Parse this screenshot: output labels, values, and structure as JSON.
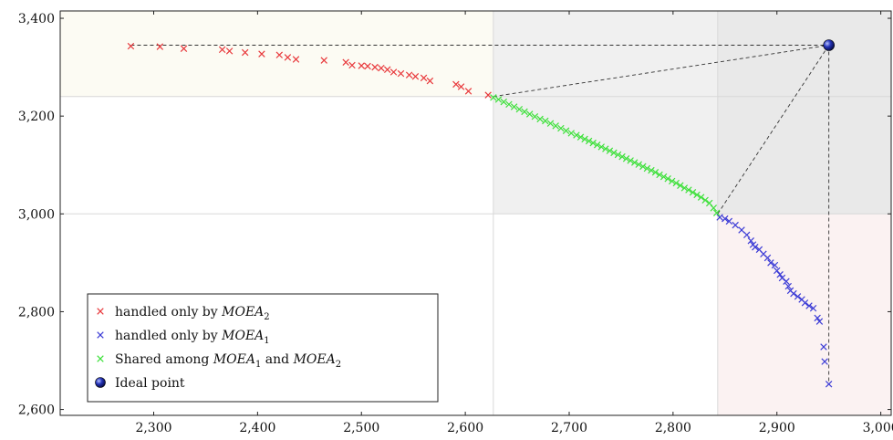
{
  "chart_data": {
    "type": "scatter",
    "xlim": [
      2210,
      3010
    ],
    "ylim": [
      2588,
      3415
    ],
    "x_ticks": [
      {
        "value": 2300,
        "label": "2,300"
      },
      {
        "value": 2400,
        "label": "2,400"
      },
      {
        "value": 2500,
        "label": "2,500"
      },
      {
        "value": 2600,
        "label": "2,600"
      },
      {
        "value": 2700,
        "label": "2,700"
      },
      {
        "value": 2800,
        "label": "2,800"
      },
      {
        "value": 2900,
        "label": "2,900"
      },
      {
        "value": 3000,
        "label": "3,000"
      }
    ],
    "y_ticks": [
      {
        "value": 2600,
        "label": "2,600"
      },
      {
        "value": 2800,
        "label": "2,800"
      },
      {
        "value": 3000,
        "label": "3,000"
      },
      {
        "value": 3200,
        "label": "3,200"
      },
      {
        "value": 3400,
        "label": "3,400"
      }
    ],
    "grid": false,
    "legend_placement": "bottom-left",
    "regions": [
      {
        "x": [
          2210,
          2627
        ],
        "y": [
          3240,
          3415
        ],
        "color": "#fcfbf3"
      },
      {
        "x": [
          2627,
          2843
        ],
        "y": [
          3000,
          3415
        ],
        "color": "#f0f0f0"
      },
      {
        "x": [
          2843,
          3010
        ],
        "y": [
          3000,
          3415
        ],
        "color": "#e9e9e9"
      },
      {
        "x": [
          2843,
          3010
        ],
        "y": [
          2588,
          3000
        ],
        "color": "#fbf2f2"
      }
    ],
    "boundary_lines": {
      "x": [
        2627,
        2843
      ],
      "y": [
        3000,
        3240
      ],
      "color": "#d8d8d8"
    },
    "ideal_point": {
      "x": 2950,
      "y": 3345
    },
    "reference_lines": [
      {
        "from": [
          2278,
          3345
        ],
        "to": [
          2950,
          3345
        ]
      },
      {
        "from": [
          2627,
          3240
        ],
        "to": [
          2950,
          3345
        ]
      },
      {
        "from": [
          2843,
          3000
        ],
        "to": [
          2950,
          3345
        ]
      },
      {
        "from": [
          2950,
          3345
        ],
        "to": [
          2950,
          2652
        ]
      }
    ],
    "series": [
      {
        "name": "handled only by MOEA2",
        "marker": "x",
        "color": "#e8383b",
        "points": [
          [
            2278,
            3343
          ],
          [
            2306,
            3342
          ],
          [
            2329,
            3338
          ],
          [
            2366,
            3336
          ],
          [
            2373,
            3333
          ],
          [
            2388,
            3330
          ],
          [
            2404,
            3327
          ],
          [
            2421,
            3325
          ],
          [
            2429,
            3320
          ],
          [
            2437,
            3316
          ],
          [
            2464,
            3314
          ],
          [
            2485,
            3310
          ],
          [
            2491,
            3304
          ],
          [
            2500,
            3303
          ],
          [
            2506,
            3302
          ],
          [
            2513,
            3300
          ],
          [
            2519,
            3298
          ],
          [
            2525,
            3295
          ],
          [
            2531,
            3290
          ],
          [
            2538,
            3287
          ],
          [
            2546,
            3284
          ],
          [
            2552,
            3281
          ],
          [
            2560,
            3278
          ],
          [
            2566,
            3272
          ],
          [
            2591,
            3265
          ],
          [
            2596,
            3260
          ],
          [
            2603,
            3251
          ],
          [
            2622,
            3243
          ]
        ]
      },
      {
        "name": "handled only by MOEA1",
        "marker": "x",
        "color": "#3c3cd6",
        "points": [
          [
            2845,
            2993
          ],
          [
            2850,
            2990
          ],
          [
            2854,
            2985
          ],
          [
            2860,
            2977
          ],
          [
            2866,
            2967
          ],
          [
            2871,
            2957
          ],
          [
            2875,
            2945
          ],
          [
            2877,
            2937
          ],
          [
            2879,
            2932
          ],
          [
            2883,
            2927
          ],
          [
            2887,
            2918
          ],
          [
            2891,
            2910
          ],
          [
            2894,
            2900
          ],
          [
            2898,
            2895
          ],
          [
            2900,
            2884
          ],
          [
            2903,
            2876
          ],
          [
            2905,
            2869
          ],
          [
            2909,
            2862
          ],
          [
            2911,
            2852
          ],
          [
            2913,
            2843
          ],
          [
            2916,
            2837
          ],
          [
            2920,
            2831
          ],
          [
            2924,
            2825
          ],
          [
            2927,
            2818
          ],
          [
            2931,
            2812
          ],
          [
            2935,
            2807
          ],
          [
            2939,
            2787
          ],
          [
            2941,
            2780
          ],
          [
            2945,
            2728
          ],
          [
            2946,
            2698
          ],
          [
            2950,
            2652
          ]
        ]
      },
      {
        "name": "Shared among MOEA1 and MOEA2",
        "marker": "x",
        "color": "#3de03a",
        "points": [
          [
            2627,
            3238
          ],
          [
            2632,
            3234
          ],
          [
            2637,
            3229
          ],
          [
            2642,
            3224
          ],
          [
            2647,
            3219
          ],
          [
            2652,
            3214
          ],
          [
            2657,
            3209
          ],
          [
            2662,
            3204
          ],
          [
            2667,
            3199
          ],
          [
            2672,
            3194
          ],
          [
            2677,
            3190
          ],
          [
            2682,
            3185
          ],
          [
            2687,
            3180
          ],
          [
            2692,
            3175
          ],
          [
            2697,
            3170
          ],
          [
            2702,
            3165
          ],
          [
            2707,
            3161
          ],
          [
            2711,
            3157
          ],
          [
            2715,
            3153
          ],
          [
            2719,
            3149
          ],
          [
            2723,
            3145
          ],
          [
            2727,
            3141
          ],
          [
            2731,
            3137
          ],
          [
            2735,
            3133
          ],
          [
            2739,
            3129
          ],
          [
            2743,
            3125
          ],
          [
            2747,
            3121
          ],
          [
            2751,
            3117
          ],
          [
            2755,
            3113
          ],
          [
            2759,
            3109
          ],
          [
            2763,
            3105
          ],
          [
            2767,
            3101
          ],
          [
            2771,
            3097
          ],
          [
            2775,
            3093
          ],
          [
            2779,
            3089
          ],
          [
            2783,
            3085
          ],
          [
            2787,
            3080
          ],
          [
            2791,
            3076
          ],
          [
            2795,
            3072
          ],
          [
            2799,
            3067
          ],
          [
            2803,
            3063
          ],
          [
            2807,
            3058
          ],
          [
            2811,
            3053
          ],
          [
            2815,
            3049
          ],
          [
            2819,
            3044
          ],
          [
            2823,
            3039
          ],
          [
            2827,
            3034
          ],
          [
            2831,
            3028
          ],
          [
            2835,
            3022
          ],
          [
            2839,
            3012
          ],
          [
            2842,
            3002
          ]
        ]
      }
    ],
    "legend": [
      {
        "text": "handled only by ",
        "math": "MOEA",
        "sub": "2",
        "kind": "x",
        "color": "#e8383b"
      },
      {
        "text": "handled only by ",
        "math": "MOEA",
        "sub": "1",
        "kind": "x",
        "color": "#3c3cd6"
      },
      {
        "text": "Shared among ",
        "math": "MOEA",
        "sub": "1",
        "text2": " and ",
        "math2": "MOEA",
        "sub2": "2",
        "kind": "x",
        "color": "#3de03a"
      },
      {
        "text": "Ideal point",
        "kind": "ball",
        "color": "#1f2aa8"
      }
    ]
  }
}
